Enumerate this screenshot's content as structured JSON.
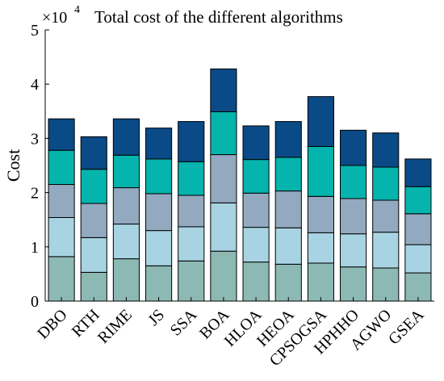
{
  "chart_data": {
    "type": "bar",
    "stacked": true,
    "title": "Total cost of the different algorithms",
    "ylabel": "Cost",
    "xlabel": "",
    "y_multiplier_label": "×10",
    "y_multiplier_exponent": "4",
    "ylim": [
      0,
      5
    ],
    "yticks": [
      "0",
      "1",
      "2",
      "3",
      "4",
      "5"
    ],
    "grid": false,
    "categories": [
      "DBO",
      "RTH",
      "RIME",
      "JS",
      "SSA",
      "BOA",
      "HLOA",
      "HEOA",
      "CPSOGSA",
      "HPHHO",
      "AGWO",
      "GSEA"
    ],
    "series": [
      {
        "color": "#8db9b5",
        "values": [
          0.82,
          0.53,
          0.78,
          0.65,
          0.74,
          0.92,
          0.72,
          0.68,
          0.7,
          0.63,
          0.61,
          0.52
        ]
      },
      {
        "color": "#a8d3e2",
        "values": [
          0.72,
          0.64,
          0.64,
          0.65,
          0.63,
          0.89,
          0.64,
          0.67,
          0.56,
          0.61,
          0.66,
          0.52
        ]
      },
      {
        "color": "#93a9c0",
        "values": [
          0.61,
          0.63,
          0.67,
          0.68,
          0.58,
          0.89,
          0.63,
          0.68,
          0.67,
          0.65,
          0.59,
          0.57
        ]
      },
      {
        "color": "#05b4ac",
        "values": [
          0.63,
          0.63,
          0.6,
          0.64,
          0.62,
          0.79,
          0.62,
          0.62,
          0.92,
          0.61,
          0.61,
          0.5
        ]
      },
      {
        "color": "#0a4a87",
        "values": [
          0.58,
          0.6,
          0.67,
          0.57,
          0.74,
          0.79,
          0.62,
          0.66,
          0.92,
          0.65,
          0.63,
          0.51
        ]
      }
    ]
  }
}
